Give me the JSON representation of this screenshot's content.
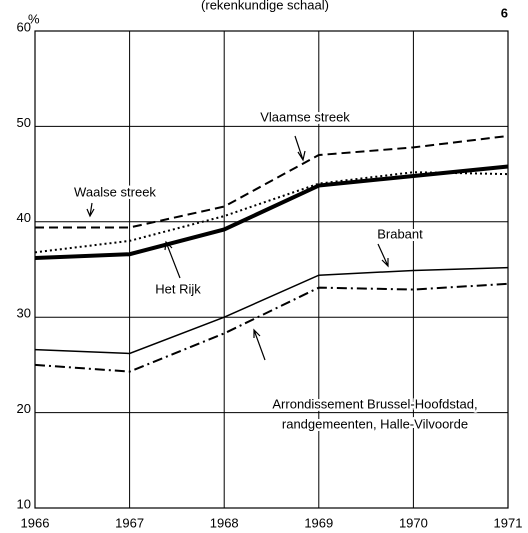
{
  "chart_data": {
    "type": "line",
    "subtitle": "(rekenkundige schaal)",
    "page_number": "6",
    "ylabel": "%",
    "x": [
      1966,
      1967,
      1968,
      1969,
      1970,
      1971
    ],
    "xlim": [
      1966,
      1971
    ],
    "xticks": [
      1966,
      1967,
      1968,
      1969,
      1970,
      1971
    ],
    "ylim": [
      10,
      60
    ],
    "yticks": [
      10,
      20,
      30,
      40,
      50,
      60
    ],
    "grid": true,
    "series": [
      {
        "name": "Het Rijk",
        "color": "#000000",
        "line_style": "thick",
        "values": [
          36.2,
          36.6,
          39.2,
          43.8,
          44.8,
          45.8
        ]
      },
      {
        "name": "Vlaamse streek",
        "color": "#000000",
        "line_style": "dashed",
        "values": [
          39.4,
          39.4,
          41.6,
          47.0,
          47.8,
          49.0
        ]
      },
      {
        "name": "Waalse streek",
        "color": "#000000",
        "line_style": "dotted",
        "values": [
          36.8,
          38.0,
          40.6,
          44.0,
          45.2,
          45.0
        ]
      },
      {
        "name": "Brabant",
        "color": "#000000",
        "line_style": "solid",
        "values": [
          26.6,
          26.2,
          30.0,
          34.4,
          34.9,
          35.2
        ]
      },
      {
        "name": "Arrondissement Brussel-Hoofdstad,",
        "color": "#000000",
        "line_style": "dashdot",
        "values": [
          25.0,
          24.3,
          28.3,
          33.1,
          32.9,
          33.5
        ]
      }
    ],
    "annotations": [
      "randgemeenten, Halle-Vilvoorde"
    ]
  }
}
